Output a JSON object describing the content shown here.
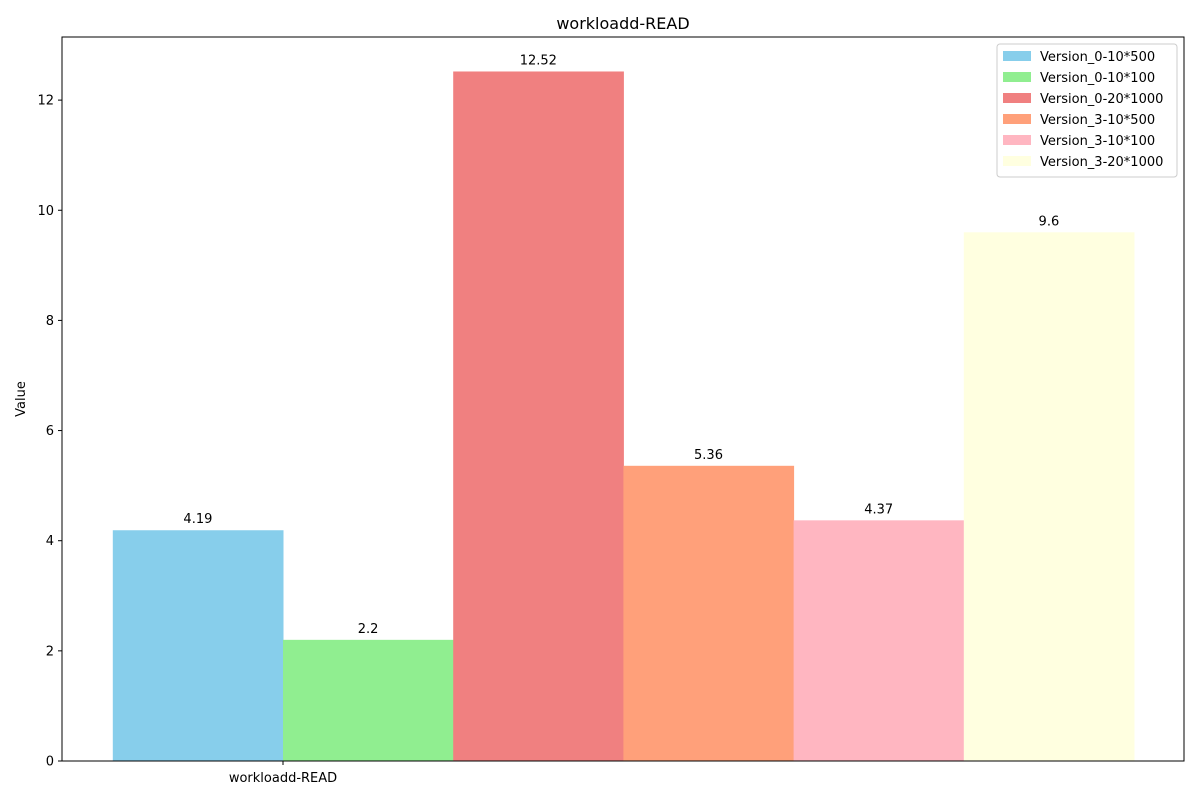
{
  "chart_data": {
    "type": "bar",
    "title": "workloadd-READ",
    "xlabel": "",
    "ylabel": "Value",
    "categories": [
      "workloadd-READ"
    ],
    "ylim": [
      0,
      13.146
    ],
    "yticks": [
      0,
      2,
      4,
      6,
      8,
      10,
      12
    ],
    "grid": false,
    "legend_position": "top-right",
    "series": [
      {
        "name": "Version_0-10*500",
        "values": [
          4.19
        ],
        "label": "4.19",
        "color": "#87ceeb"
      },
      {
        "name": "Version_0-10*100",
        "values": [
          2.2
        ],
        "label": "2.2",
        "color": "#90ee90"
      },
      {
        "name": "Version_0-20*1000",
        "values": [
          12.52
        ],
        "label": "12.52",
        "color": "#f08080"
      },
      {
        "name": "Version_3-10*500",
        "values": [
          5.36
        ],
        "label": "5.36",
        "color": "#ffa07a"
      },
      {
        "name": "Version_3-10*100",
        "values": [
          4.37
        ],
        "label": "4.37",
        "color": "#ffb6c1"
      },
      {
        "name": "Version_3-20*1000",
        "values": [
          9.6
        ],
        "label": "9.6",
        "color": "#ffffe0"
      }
    ]
  }
}
